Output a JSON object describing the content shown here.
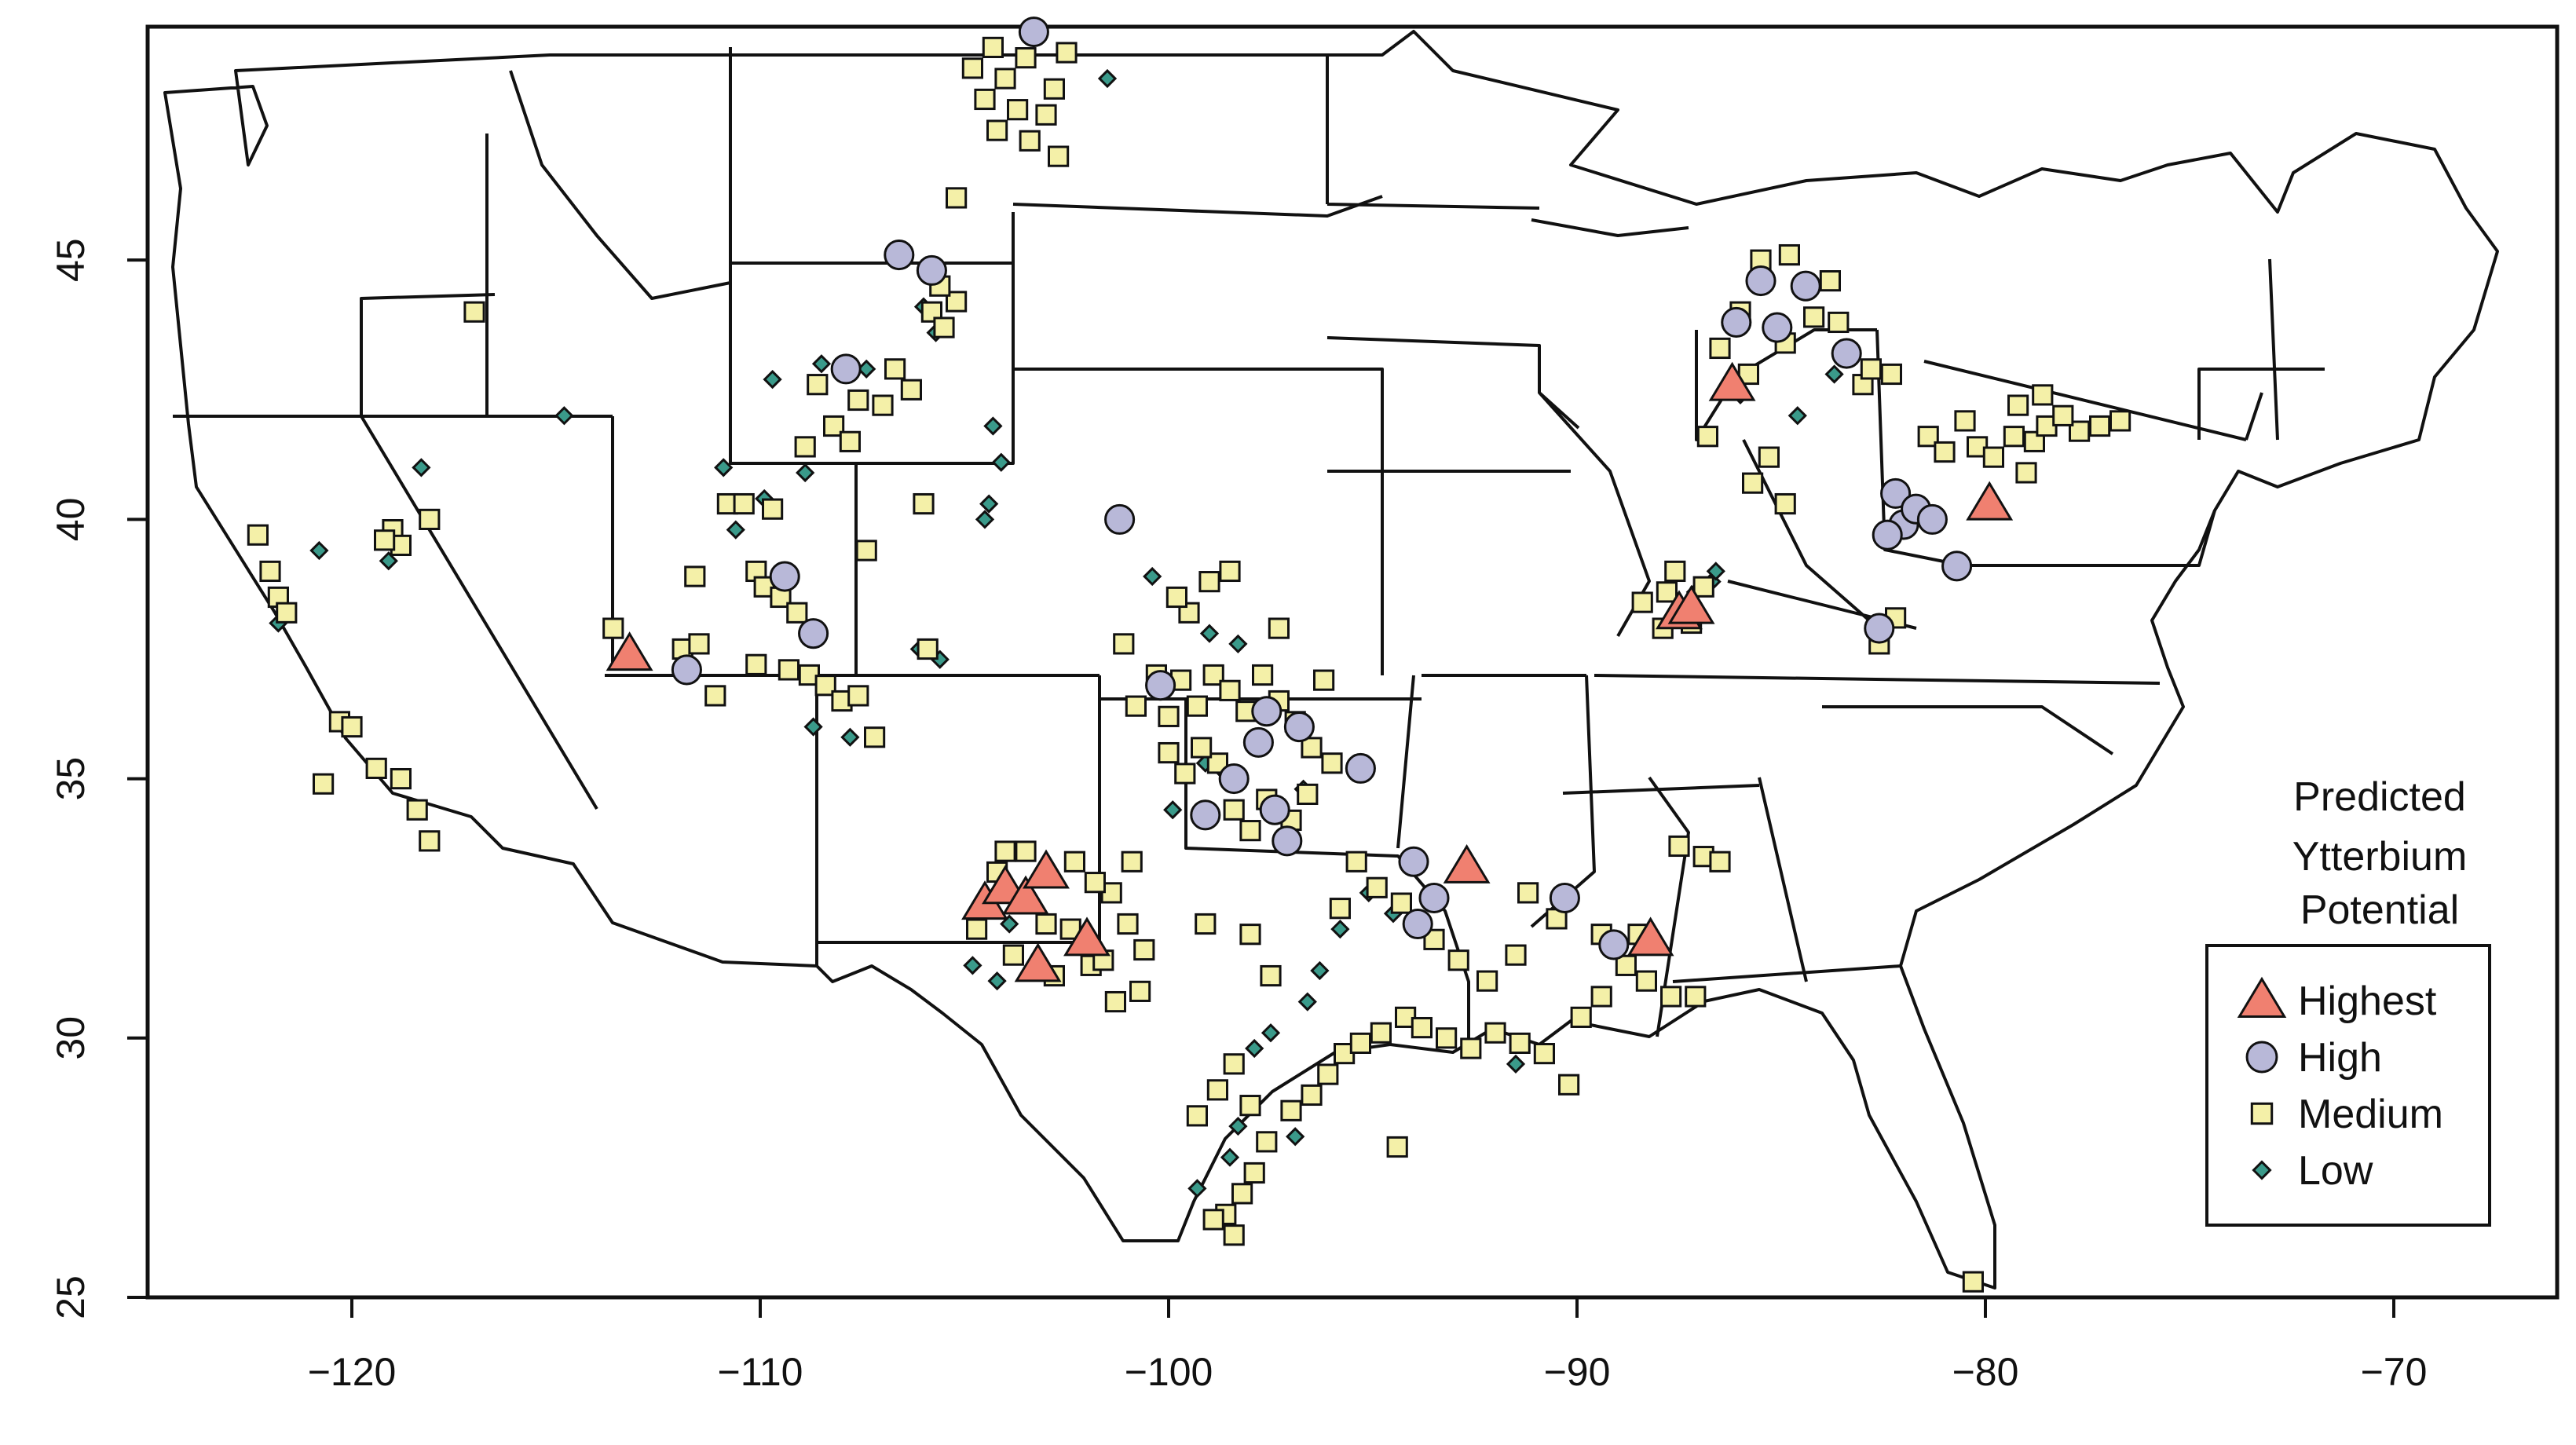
{
  "chart_data": {
    "type": "scatter",
    "title": "",
    "xlabel": "",
    "ylabel": "",
    "xlim": [
      -125,
      -66
    ],
    "ylim": [
      25,
      49.5
    ],
    "x_ticks": [
      -120,
      -110,
      -100,
      -90,
      -80,
      -70
    ],
    "y_ticks": [
      25,
      30,
      35,
      40,
      45
    ],
    "x_tick_labels": [
      "−120",
      "−110",
      "−100",
      "−90",
      "−80",
      "−70"
    ],
    "y_tick_labels": [
      "25",
      "30",
      "35",
      "40",
      "45"
    ],
    "grid": false,
    "legend": {
      "position": "bottom-right",
      "title_lines": [
        "Predicted",
        "Ytterbium",
        "Potential"
      ]
    },
    "series": [
      {
        "name": "Highest",
        "marker": "triangle",
        "color": "#f08070",
        "points": [
          [
            -113.2,
            37.4
          ],
          [
            -104.5,
            32.6
          ],
          [
            -104.0,
            32.9
          ],
          [
            -103.5,
            32.7
          ],
          [
            -103.0,
            33.2
          ],
          [
            -103.2,
            31.4
          ],
          [
            -102.0,
            31.9
          ],
          [
            -92.7,
            33.3
          ],
          [
            -88.2,
            31.9
          ],
          [
            -87.5,
            38.2
          ],
          [
            -87.2,
            38.3
          ],
          [
            -86.2,
            42.6
          ],
          [
            -79.9,
            40.3
          ]
        ]
      },
      {
        "name": "High",
        "marker": "circle",
        "color": "#b8b8d8",
        "points": [
          [
            -111.8,
            37.1
          ],
          [
            -109.4,
            38.9
          ],
          [
            -108.7,
            37.8
          ],
          [
            -107.9,
            42.9
          ],
          [
            -106.6,
            45.1
          ],
          [
            -105.8,
            44.8
          ],
          [
            -103.3,
            49.4
          ],
          [
            -101.2,
            40.0
          ],
          [
            -100.2,
            36.8
          ],
          [
            -99.1,
            34.3
          ],
          [
            -98.4,
            35.0
          ],
          [
            -97.8,
            35.7
          ],
          [
            -97.4,
            34.4
          ],
          [
            -96.8,
            36.0
          ],
          [
            -97.1,
            33.8
          ],
          [
            -97.6,
            36.3
          ],
          [
            -95.3,
            35.2
          ],
          [
            -94.0,
            33.4
          ],
          [
            -93.5,
            32.7
          ],
          [
            -93.9,
            32.2
          ],
          [
            -90.3,
            32.7
          ],
          [
            -89.1,
            31.8
          ],
          [
            -86.1,
            43.8
          ],
          [
            -85.5,
            44.6
          ],
          [
            -85.1,
            43.7
          ],
          [
            -84.4,
            44.5
          ],
          [
            -83.4,
            43.2
          ],
          [
            -82.6,
            37.9
          ],
          [
            -82.2,
            40.5
          ],
          [
            -82.0,
            39.9
          ],
          [
            -81.7,
            40.2
          ],
          [
            -81.3,
            40.0
          ],
          [
            -80.7,
            39.1
          ],
          [
            -82.4,
            39.7
          ]
        ]
      },
      {
        "name": "Medium",
        "marker": "square",
        "color": "#f4f0a8",
        "points": [
          [
            -122.3,
            39.7
          ],
          [
            -122.0,
            39.0
          ],
          [
            -121.8,
            38.5
          ],
          [
            -121.6,
            38.2
          ],
          [
            -120.3,
            36.1
          ],
          [
            -120.0,
            36.0
          ],
          [
            -119.4,
            35.2
          ],
          [
            -118.8,
            35.0
          ],
          [
            -118.4,
            34.4
          ],
          [
            -118.1,
            33.8
          ],
          [
            -119.0,
            39.8
          ],
          [
            -118.8,
            39.5
          ],
          [
            -118.1,
            40.0
          ],
          [
            -117.0,
            44.0
          ],
          [
            -113.6,
            37.9
          ],
          [
            -111.9,
            37.5
          ],
          [
            -111.6,
            38.9
          ],
          [
            -111.1,
            36.6
          ],
          [
            -110.8,
            40.3
          ],
          [
            -110.4,
            40.3
          ],
          [
            -110.1,
            39.0
          ],
          [
            -109.7,
            40.2
          ],
          [
            -109.9,
            38.7
          ],
          [
            -109.5,
            38.5
          ],
          [
            -109.1,
            38.2
          ],
          [
            -110.1,
            37.2
          ],
          [
            -109.3,
            37.1
          ],
          [
            -108.8,
            37.0
          ],
          [
            -108.4,
            36.8
          ],
          [
            -108.0,
            36.5
          ],
          [
            -107.6,
            36.6
          ],
          [
            -107.2,
            35.8
          ],
          [
            -108.6,
            42.6
          ],
          [
            -108.2,
            41.8
          ],
          [
            -107.8,
            41.5
          ],
          [
            -107.6,
            42.3
          ],
          [
            -108.9,
            41.4
          ],
          [
            -107.0,
            42.2
          ],
          [
            -106.7,
            42.9
          ],
          [
            -106.3,
            42.5
          ],
          [
            -105.8,
            44.0
          ],
          [
            -105.5,
            43.7
          ],
          [
            -105.2,
            44.2
          ],
          [
            -105.6,
            44.5
          ],
          [
            -107.4,
            39.4
          ],
          [
            -106.0,
            40.3
          ],
          [
            -105.9,
            37.5
          ],
          [
            -105.2,
            46.2
          ],
          [
            -104.8,
            48.7
          ],
          [
            -104.5,
            48.1
          ],
          [
            -104.0,
            48.5
          ],
          [
            -103.7,
            47.9
          ],
          [
            -103.4,
            47.3
          ],
          [
            -103.0,
            47.8
          ],
          [
            -102.8,
            48.3
          ],
          [
            -102.7,
            47.0
          ],
          [
            -103.5,
            48.9
          ],
          [
            -104.2,
            47.5
          ],
          [
            -104.3,
            49.1
          ],
          [
            -102.5,
            49.0
          ],
          [
            -101.1,
            37.6
          ],
          [
            -100.8,
            36.4
          ],
          [
            -100.3,
            37.0
          ],
          [
            -100.0,
            36.2
          ],
          [
            -99.7,
            36.9
          ],
          [
            -99.3,
            36.4
          ],
          [
            -98.9,
            37.0
          ],
          [
            -98.5,
            36.7
          ],
          [
            -98.1,
            36.3
          ],
          [
            -97.7,
            37.0
          ],
          [
            -97.3,
            36.5
          ],
          [
            -96.9,
            36.1
          ],
          [
            -96.5,
            35.6
          ],
          [
            -96.2,
            36.9
          ],
          [
            -96.0,
            35.3
          ],
          [
            -96.6,
            34.7
          ],
          [
            -97.0,
            34.2
          ],
          [
            -97.6,
            34.6
          ],
          [
            -98.0,
            34.0
          ],
          [
            -98.4,
            34.4
          ],
          [
            -98.8,
            35.3
          ],
          [
            -99.2,
            35.6
          ],
          [
            -99.6,
            35.1
          ],
          [
            -100.0,
            35.5
          ],
          [
            -99.5,
            38.2
          ],
          [
            -99.0,
            38.8
          ],
          [
            -98.5,
            39.0
          ],
          [
            -97.3,
            37.9
          ],
          [
            -99.8,
            38.5
          ],
          [
            -100.9,
            33.4
          ],
          [
            -101.4,
            32.8
          ],
          [
            -101.0,
            32.2
          ],
          [
            -100.6,
            31.7
          ],
          [
            -100.7,
            30.9
          ],
          [
            -101.3,
            30.7
          ],
          [
            -101.9,
            31.4
          ],
          [
            -102.4,
            32.1
          ],
          [
            -102.8,
            31.2
          ],
          [
            -103.8,
            31.6
          ],
          [
            -104.2,
            33.2
          ],
          [
            -104.7,
            32.1
          ],
          [
            -103.0,
            32.2
          ],
          [
            -102.3,
            33.4
          ],
          [
            -101.8,
            33.0
          ],
          [
            -99.3,
            28.5
          ],
          [
            -98.8,
            29.0
          ],
          [
            -98.4,
            29.5
          ],
          [
            -98.0,
            28.7
          ],
          [
            -97.6,
            28.0
          ],
          [
            -97.9,
            27.4
          ],
          [
            -98.2,
            27.0
          ],
          [
            -98.6,
            26.6
          ],
          [
            -98.9,
            26.5
          ],
          [
            -98.4,
            26.2
          ],
          [
            -97.0,
            28.6
          ],
          [
            -96.5,
            28.9
          ],
          [
            -96.1,
            29.3
          ],
          [
            -95.7,
            29.7
          ],
          [
            -95.3,
            29.9
          ],
          [
            -94.8,
            30.1
          ],
          [
            -94.2,
            30.4
          ],
          [
            -93.8,
            30.2
          ],
          [
            -93.2,
            30.0
          ],
          [
            -92.6,
            29.8
          ],
          [
            -92.0,
            30.1
          ],
          [
            -91.4,
            29.9
          ],
          [
            -90.8,
            29.7
          ],
          [
            -90.2,
            29.1
          ],
          [
            -89.9,
            30.4
          ],
          [
            -89.4,
            30.8
          ],
          [
            -88.8,
            31.4
          ],
          [
            -88.3,
            31.1
          ],
          [
            -87.7,
            30.8
          ],
          [
            -87.1,
            30.8
          ],
          [
            -86.9,
            33.5
          ],
          [
            -87.5,
            33.7
          ],
          [
            -86.5,
            33.4
          ],
          [
            -88.5,
            32.0
          ],
          [
            -89.4,
            32.0
          ],
          [
            -90.5,
            32.3
          ],
          [
            -91.2,
            32.8
          ],
          [
            -91.5,
            31.6
          ],
          [
            -92.2,
            31.1
          ],
          [
            -92.9,
            31.5
          ],
          [
            -93.5,
            31.9
          ],
          [
            -94.3,
            32.6
          ],
          [
            -94.9,
            32.9
          ],
          [
            -95.4,
            33.4
          ],
          [
            -95.8,
            32.5
          ],
          [
            -94.4,
            27.9
          ],
          [
            -87.8,
            38.6
          ],
          [
            -87.6,
            39.0
          ],
          [
            -87.2,
            38.0
          ],
          [
            -88.4,
            38.4
          ],
          [
            -87.9,
            37.9
          ],
          [
            -86.9,
            38.7
          ],
          [
            -85.7,
            40.7
          ],
          [
            -85.3,
            41.2
          ],
          [
            -84.9,
            40.3
          ],
          [
            -86.8,
            41.6
          ],
          [
            -86.5,
            43.3
          ],
          [
            -86.0,
            44.0
          ],
          [
            -85.5,
            45.0
          ],
          [
            -84.8,
            45.1
          ],
          [
            -84.2,
            43.9
          ],
          [
            -83.8,
            44.6
          ],
          [
            -83.6,
            43.8
          ],
          [
            -84.9,
            43.4
          ],
          [
            -85.8,
            42.8
          ],
          [
            -83.0,
            42.6
          ],
          [
            -82.3,
            42.8
          ],
          [
            -82.8,
            42.9
          ],
          [
            -81.4,
            41.6
          ],
          [
            -81.0,
            41.3
          ],
          [
            -80.5,
            41.9
          ],
          [
            -80.2,
            41.4
          ],
          [
            -79.8,
            41.2
          ],
          [
            -79.3,
            41.6
          ],
          [
            -78.8,
            41.5
          ],
          [
            -79.0,
            40.9
          ],
          [
            -78.5,
            41.8
          ],
          [
            -77.7,
            41.7
          ],
          [
            -77.2,
            41.8
          ],
          [
            -76.7,
            41.9
          ],
          [
            -78.1,
            42.0
          ],
          [
            -78.6,
            42.4
          ],
          [
            -79.2,
            42.2
          ],
          [
            -82.6,
            37.6
          ],
          [
            -82.2,
            38.1
          ],
          [
            -80.3,
            25.3
          ],
          [
            -120.7,
            34.9
          ],
          [
            -119.2,
            39.6
          ],
          [
            -111.5,
            37.6
          ],
          [
            -104.0,
            33.6
          ],
          [
            -103.5,
            33.6
          ],
          [
            -101.6,
            31.5
          ],
          [
            -99.1,
            32.2
          ],
          [
            -98.0,
            32.0
          ],
          [
            -97.5,
            31.2
          ]
        ]
      },
      {
        "name": "Low",
        "marker": "diamond",
        "color": "#3a9a8a",
        "points": [
          [
            -121.8,
            38.0
          ],
          [
            -120.8,
            39.4
          ],
          [
            -119.1,
            39.2
          ],
          [
            -118.3,
            41.0
          ],
          [
            -114.8,
            42.0
          ],
          [
            -110.9,
            41.0
          ],
          [
            -110.6,
            39.8
          ],
          [
            -109.9,
            40.4
          ],
          [
            -109.7,
            42.7
          ],
          [
            -108.5,
            43.0
          ],
          [
            -108.9,
            40.9
          ],
          [
            -107.4,
            42.9
          ],
          [
            -106.0,
            44.1
          ],
          [
            -105.7,
            43.6
          ],
          [
            -104.3,
            41.8
          ],
          [
            -104.1,
            41.1
          ],
          [
            -104.4,
            40.3
          ],
          [
            -104.5,
            40.0
          ],
          [
            -106.1,
            37.5
          ],
          [
            -105.6,
            37.3
          ],
          [
            -108.7,
            36.0
          ],
          [
            -107.8,
            35.8
          ],
          [
            -101.5,
            48.5
          ],
          [
            -100.4,
            38.9
          ],
          [
            -99.0,
            37.8
          ],
          [
            -98.3,
            37.6
          ],
          [
            -99.1,
            35.3
          ],
          [
            -99.9,
            34.4
          ],
          [
            -98.6,
            35.1
          ],
          [
            -96.7,
            34.8
          ],
          [
            -94.5,
            32.4
          ],
          [
            -95.1,
            32.8
          ],
          [
            -95.8,
            32.1
          ],
          [
            -96.3,
            31.3
          ],
          [
            -96.6,
            30.7
          ],
          [
            -97.5,
            30.1
          ],
          [
            -97.9,
            29.8
          ],
          [
            -98.5,
            27.7
          ],
          [
            -99.3,
            27.1
          ],
          [
            -98.3,
            28.3
          ],
          [
            -96.9,
            28.1
          ],
          [
            -104.2,
            31.1
          ],
          [
            -104.8,
            31.4
          ],
          [
            -103.9,
            32.2
          ],
          [
            -91.5,
            29.5
          ],
          [
            -87.1,
            38.6
          ],
          [
            -86.7,
            38.8
          ],
          [
            -86.6,
            39.0
          ],
          [
            -86.0,
            42.4
          ],
          [
            -84.6,
            42.0
          ],
          [
            -83.7,
            42.8
          ]
        ]
      }
    ]
  }
}
